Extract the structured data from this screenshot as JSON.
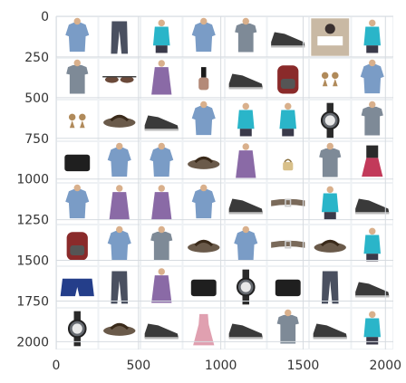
{
  "figure": {
    "type": "image-grid-plot",
    "grid_rows": 8,
    "grid_cols": 8,
    "x_range": [
      0,
      2048
    ],
    "y_range": [
      0,
      2048
    ],
    "y_inverted": true,
    "x_ticks": [
      0,
      500,
      1000,
      1500,
      2000
    ],
    "y_ticks": [
      0,
      250,
      500,
      750,
      1000,
      1250,
      1500,
      1750,
      2000
    ],
    "tick_labels_x": [
      "0",
      "500",
      "1000",
      "1500",
      "2000"
    ],
    "tick_labels_y": [
      "0",
      "250",
      "500",
      "750",
      "1000",
      "1250",
      "1500",
      "1750",
      "2000"
    ],
    "colors": {
      "background": "#eef1f4",
      "grid": "#d6dbe0",
      "cell_bg": "#ffffff",
      "axis_text": "#333333"
    }
  },
  "cells": [
    [
      "shirt-icon",
      "trousers-icon",
      "top-icon",
      "shirt-icon",
      "tshirt-icon",
      "shoe-icon",
      "photo-icon",
      "top-icon"
    ],
    [
      "tshirt-icon",
      "sunglasses-icon",
      "kurta-icon",
      "nail-polish-icon",
      "shoe-icon",
      "backpack-icon",
      "earrings-icon",
      "shirt-icon"
    ],
    [
      "earrings-icon",
      "sandal-icon",
      "shoe-icon",
      "shirt-icon",
      "top-icon",
      "top-icon",
      "watch-icon",
      "tshirt-icon"
    ],
    [
      "wallet-icon",
      "shirt-icon",
      "shirt-icon",
      "sandal-icon",
      "kurta-icon",
      "bag-icon",
      "tshirt-icon",
      "skirt-icon"
    ],
    [
      "shirt-icon",
      "kurta-icon",
      "kurta-icon",
      "shirt-icon",
      "shoe-icon",
      "belt-icon",
      "top-icon",
      "shoe-icon"
    ],
    [
      "backpack-icon",
      "shirt-icon",
      "tshirt-icon",
      "sandal-icon",
      "shirt-icon",
      "belt-icon",
      "sandal-icon",
      "top-icon"
    ],
    [
      "shorts-icon",
      "trousers-icon",
      "kurta-icon",
      "wallet-icon",
      "watch-icon",
      "wallet-icon",
      "trousers-icon",
      "shoe-icon"
    ],
    [
      "watch-icon",
      "sandal-icon",
      "shoe-icon",
      "dress-icon",
      "shoe-icon",
      "tshirt-icon",
      "shoe-icon",
      "top-icon"
    ]
  ],
  "palette": {
    "shirt-icon": "#7a9cc6",
    "trousers-icon": "#4a5060",
    "top-icon": "#2ab5c9",
    "tshirt-icon": "#7e8a97",
    "shoe-icon": "#3a3a3a",
    "photo-icon": "#c9b9a4",
    "sunglasses-icon": "#6b4a3a",
    "kurta-icon": "#8a6aa6",
    "nail-polish-icon": "#b48a78",
    "backpack-icon": "#8a2a2a",
    "earrings-icon": "#b08a5a",
    "sandal-icon": "#6a5a4a",
    "watch-icon": "#666a70",
    "wallet-icon": "#1f1f1f",
    "bag-icon": "#d8c08a",
    "skirt-icon": "#c23a5a",
    "belt-icon": "#7a6a5a",
    "shorts-icon": "#243e8a",
    "dress-icon": "#e0a0b0"
  }
}
